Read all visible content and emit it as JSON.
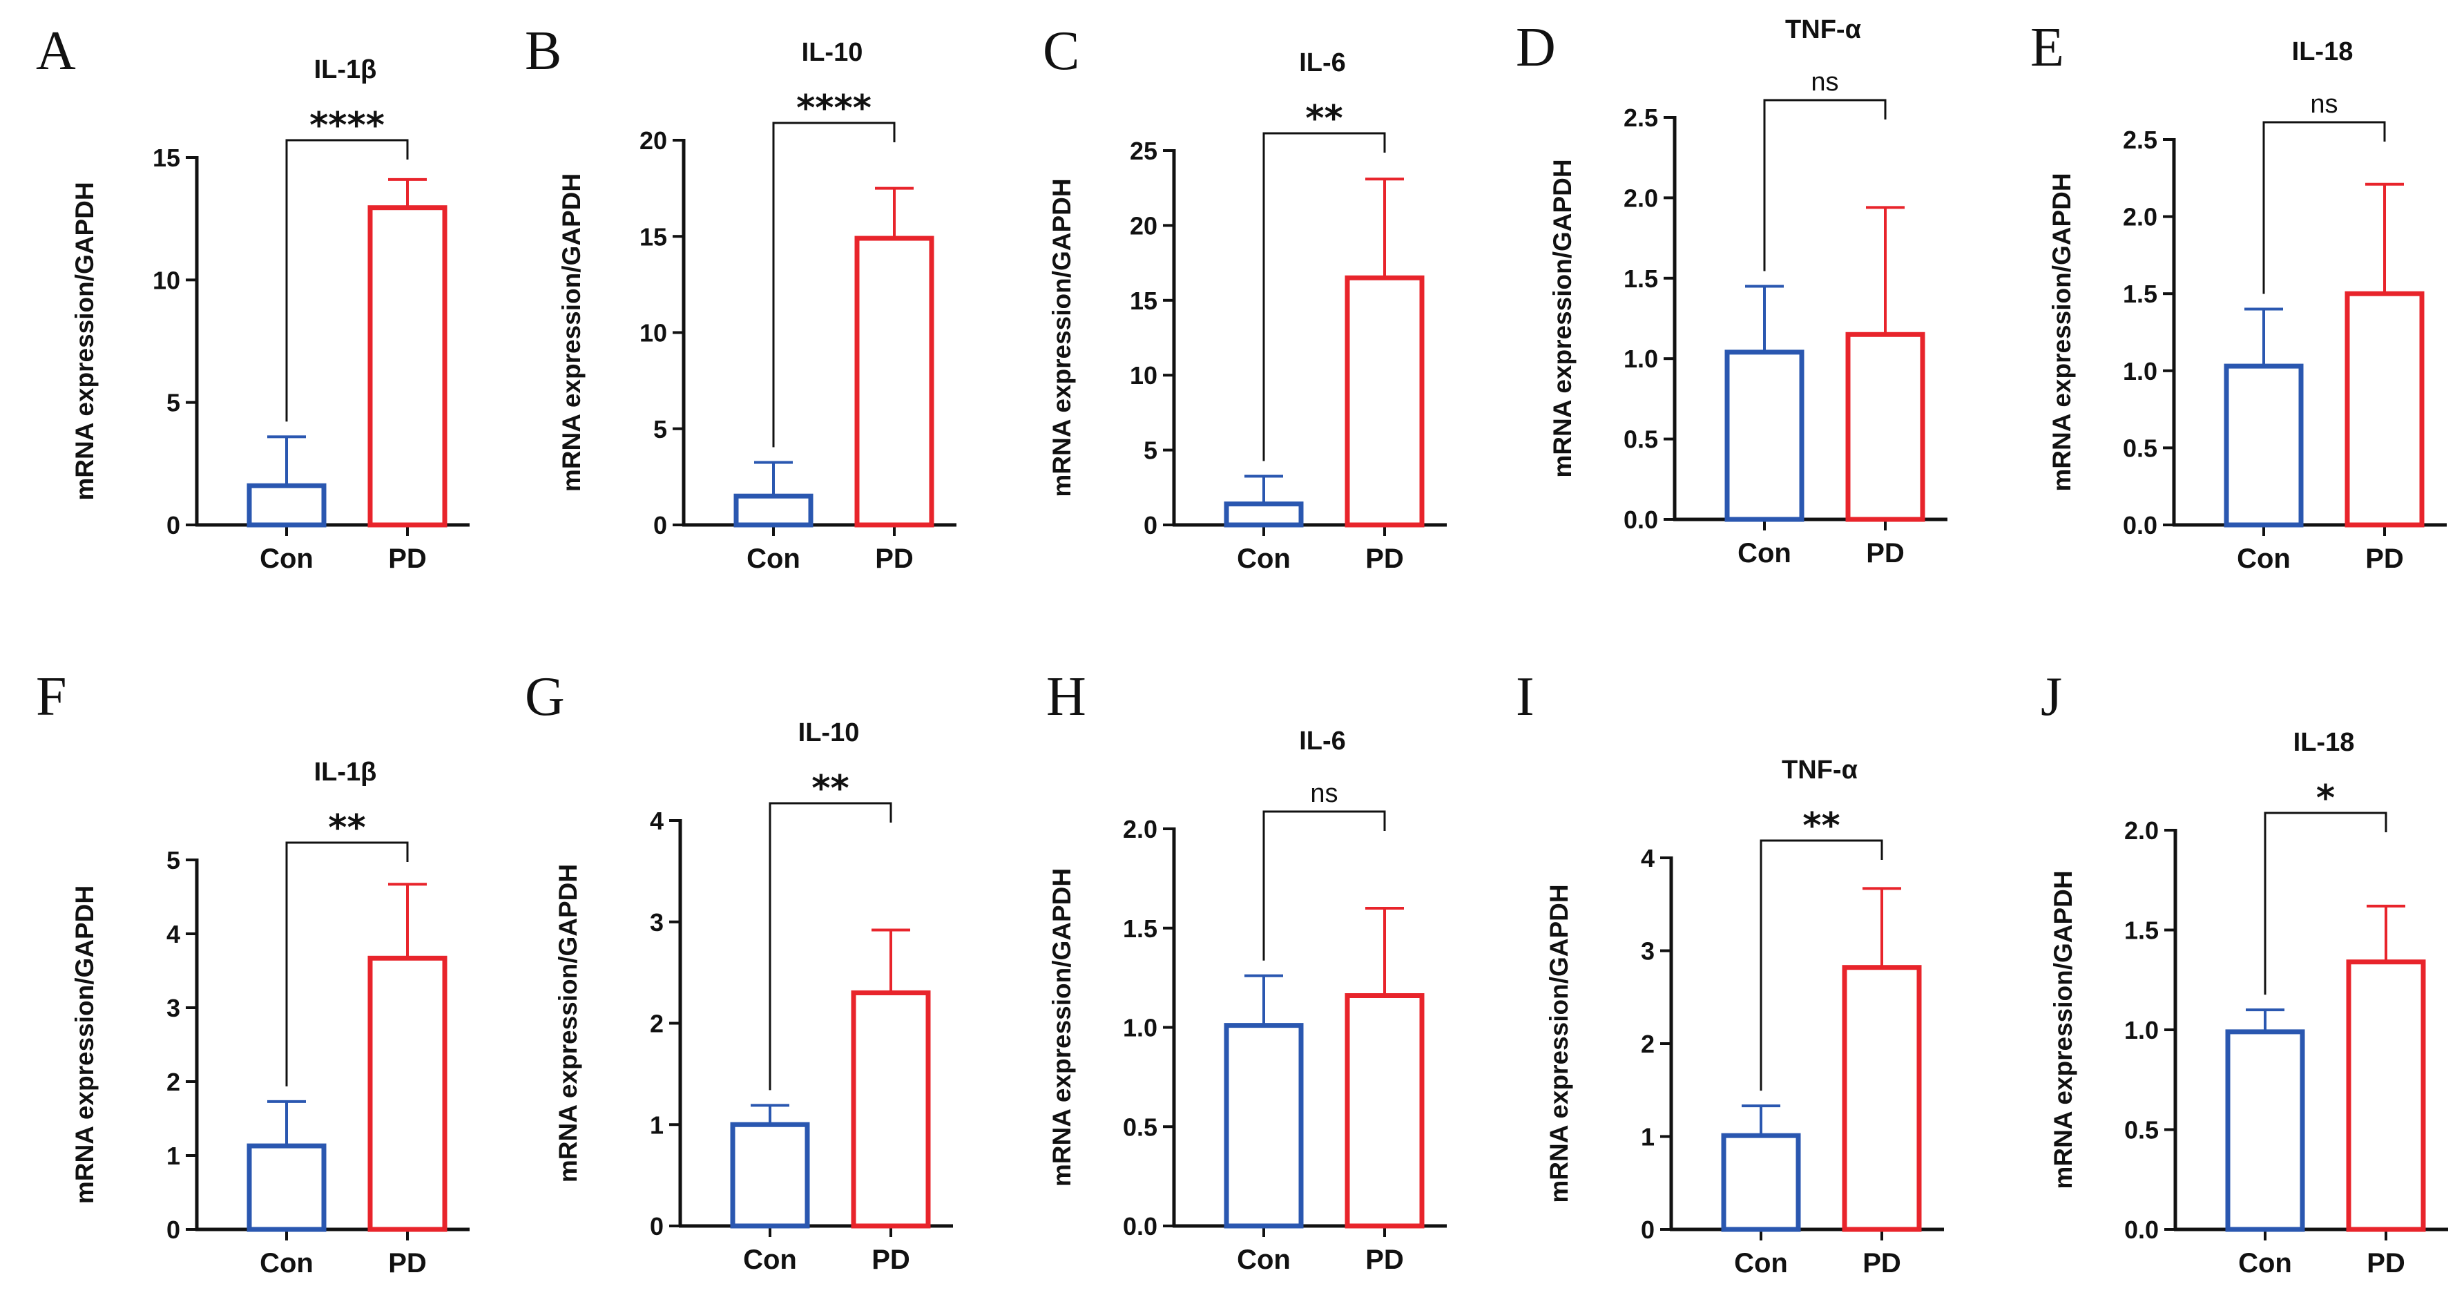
{
  "figure": {
    "colors": {
      "con": "#2a57b0",
      "pd": "#e8242b",
      "axis": "#111111"
    }
  },
  "chart_data": [
    {
      "type": "bar",
      "letter": "A",
      "title": "IL-1β",
      "ylabel": "mRNA expression/GAPDH",
      "categories": [
        "Con",
        "PD"
      ],
      "values": [
        1.6,
        12.95
      ],
      "errors": [
        2.0,
        1.15
      ],
      "ylim": [
        0,
        15
      ],
      "yticks": [
        "0",
        "5",
        "10",
        "15"
      ],
      "significance": "****"
    },
    {
      "type": "bar",
      "letter": "B",
      "title": "IL-10",
      "ylabel": "mRNA expression/GAPDH",
      "categories": [
        "Con",
        "PD"
      ],
      "values": [
        1.5,
        14.9
      ],
      "errors": [
        1.75,
        2.6
      ],
      "ylim": [
        0,
        20
      ],
      "yticks": [
        "0",
        "5",
        "10",
        "15",
        "20"
      ],
      "significance": "****"
    },
    {
      "type": "bar",
      "letter": "C",
      "title": "IL-6",
      "ylabel": "mRNA expression/GAPDH",
      "categories": [
        "Con",
        "PD"
      ],
      "values": [
        1.4,
        16.5
      ],
      "errors": [
        1.85,
        6.6
      ],
      "ylim": [
        0,
        25
      ],
      "yticks": [
        "0",
        "5",
        "10",
        "15",
        "20",
        "25"
      ],
      "significance": "**"
    },
    {
      "type": "bar",
      "letter": "D",
      "title": "TNF-α",
      "ylabel": "mRNA expression/GAPDH",
      "categories": [
        "Con",
        "PD"
      ],
      "values": [
        1.04,
        1.15
      ],
      "errors": [
        0.41,
        0.79
      ],
      "ylim": [
        0,
        2.5
      ],
      "yticks": [
        "0.0",
        "0.5",
        "1.0",
        "1.5",
        "2.0",
        "2.5"
      ],
      "significance": "ns"
    },
    {
      "type": "bar",
      "letter": "E",
      "title": "IL-18",
      "ylabel": "mRNA expression/GAPDH",
      "categories": [
        "Con",
        "PD"
      ],
      "values": [
        1.03,
        1.5
      ],
      "errors": [
        0.37,
        0.71
      ],
      "ylim": [
        0,
        2.5
      ],
      "yticks": [
        "0.0",
        "0.5",
        "1.0",
        "1.5",
        "2.0",
        "2.5"
      ],
      "significance": "ns"
    },
    {
      "type": "bar",
      "letter": "F",
      "title": "IL-1β",
      "ylabel": "mRNA expression/GAPDH",
      "categories": [
        "Con",
        "PD"
      ],
      "values": [
        1.13,
        3.67
      ],
      "errors": [
        0.6,
        1.0
      ],
      "ylim": [
        0,
        5
      ],
      "yticks": [
        "0",
        "1",
        "2",
        "3",
        "4",
        "5"
      ],
      "significance": "**"
    },
    {
      "type": "bar",
      "letter": "G",
      "title": "IL-10",
      "ylabel": "mRNA expression/GAPDH",
      "categories": [
        "Con",
        "PD"
      ],
      "values": [
        1.0,
        2.3
      ],
      "errors": [
        0.19,
        0.62
      ],
      "ylim": [
        0,
        4
      ],
      "yticks": [
        "0",
        "1",
        "2",
        "3",
        "4"
      ],
      "significance": "**"
    },
    {
      "type": "bar",
      "letter": "H",
      "title": "IL-6",
      "ylabel": "mRNA expression/GAPDH",
      "categories": [
        "Con",
        "PD"
      ],
      "values": [
        1.01,
        1.16
      ],
      "errors": [
        0.25,
        0.44
      ],
      "ylim": [
        0,
        2.0
      ],
      "yticks": [
        "0.0",
        "0.5",
        "1.0",
        "1.5",
        "2.0"
      ],
      "significance": "ns"
    },
    {
      "type": "bar",
      "letter": "I",
      "title": "TNF-α",
      "ylabel": "mRNA expression/GAPDH",
      "categories": [
        "Con",
        "PD"
      ],
      "values": [
        1.01,
        2.82
      ],
      "errors": [
        0.32,
        0.85
      ],
      "ylim": [
        0,
        4
      ],
      "yticks": [
        "0",
        "1",
        "2",
        "3",
        "4"
      ],
      "significance": "**"
    },
    {
      "type": "bar",
      "letter": "J",
      "title": "IL-18",
      "ylabel": "mRNA expression/GAPDH",
      "categories": [
        "Con",
        "PD"
      ],
      "values": [
        0.99,
        1.34
      ],
      "errors": [
        0.11,
        0.28
      ],
      "ylim": [
        0,
        2.0
      ],
      "yticks": [
        "0.0",
        "0.5",
        "1.0",
        "1.5",
        "2.0"
      ],
      "significance": "*"
    }
  ]
}
